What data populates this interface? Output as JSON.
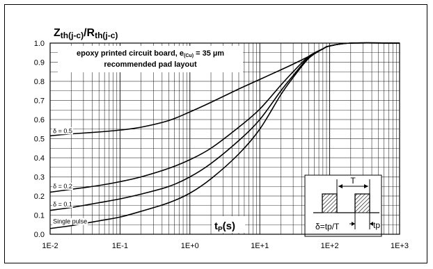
{
  "chart_data": {
    "type": "line",
    "title_main": "Z",
    "title_main_sub": "th(j-c)",
    "title_sep": "/R",
    "title_den_sub": "th(j-c)",
    "annotation_line1_pre": "epoxy printed circuit board, e",
    "annotation_line1_sub": "(Cu)",
    "annotation_line1_post": " = 35 µm",
    "annotation_line2": "recommended pad layout",
    "xlabel_main": "t",
    "xlabel_sub": "P",
    "xlabel_unit": "(s)",
    "xscale": "log",
    "xlim": [
      0.01,
      1000
    ],
    "ylim": [
      0,
      1.0
    ],
    "x_ticks": [
      {
        "v": 0.01,
        "label": "1E-2"
      },
      {
        "v": 0.1,
        "label": "1E-1"
      },
      {
        "v": 1,
        "label": "1E+0"
      },
      {
        "v": 10,
        "label": "1E+1"
      },
      {
        "v": 100,
        "label": "1E+2"
      },
      {
        "v": 1000,
        "label": "1E+3"
      }
    ],
    "y_ticks": [
      {
        "v": 0.0,
        "label": "0.0"
      },
      {
        "v": 0.1,
        "label": "0.1"
      },
      {
        "v": 0.2,
        "label": "0.2"
      },
      {
        "v": 0.3,
        "label": "0.3"
      },
      {
        "v": 0.4,
        "label": "0.4"
      },
      {
        "v": 0.5,
        "label": "0.5"
      },
      {
        "v": 0.6,
        "label": "0.6"
      },
      {
        "v": 0.7,
        "label": "0.7"
      },
      {
        "v": 0.8,
        "label": "0.8"
      },
      {
        "v": 0.9,
        "label": "0.9"
      },
      {
        "v": 1.0,
        "label": "1.0"
      }
    ],
    "grid": true,
    "series": [
      {
        "name": "δ = 0.5",
        "x": [
          0.01,
          0.02,
          0.05,
          0.1,
          0.2,
          0.5,
          1,
          2,
          5,
          10,
          20,
          30,
          50,
          80,
          100,
          200,
          1000
        ],
        "y": [
          0.515,
          0.525,
          0.535,
          0.545,
          0.56,
          0.595,
          0.64,
          0.69,
          0.76,
          0.81,
          0.86,
          0.89,
          0.93,
          0.97,
          0.985,
          1.0,
          1.0
        ]
      },
      {
        "name": "δ = 0.2",
        "x": [
          0.01,
          0.02,
          0.05,
          0.1,
          0.2,
          0.5,
          1,
          2,
          5,
          10,
          20,
          30,
          50,
          80,
          100,
          200,
          1000
        ],
        "y": [
          0.22,
          0.235,
          0.255,
          0.275,
          0.3,
          0.345,
          0.39,
          0.45,
          0.56,
          0.655,
          0.78,
          0.85,
          0.93,
          0.97,
          0.985,
          1.0,
          1.0
        ]
      },
      {
        "name": "δ = 0.1",
        "x": [
          0.01,
          0.02,
          0.05,
          0.1,
          0.2,
          0.5,
          1,
          2,
          5,
          10,
          20,
          30,
          50,
          80,
          100,
          200,
          1000
        ],
        "y": [
          0.125,
          0.14,
          0.165,
          0.185,
          0.21,
          0.25,
          0.3,
          0.37,
          0.49,
          0.6,
          0.75,
          0.83,
          0.925,
          0.97,
          0.985,
          1.0,
          1.0
        ]
      },
      {
        "name": "Single pulse",
        "x": [
          0.01,
          0.02,
          0.05,
          0.1,
          0.2,
          0.5,
          1,
          2,
          5,
          10,
          20,
          30,
          50,
          80,
          100,
          200,
          1000
        ],
        "y": [
          0.03,
          0.045,
          0.07,
          0.09,
          0.12,
          0.165,
          0.215,
          0.29,
          0.42,
          0.55,
          0.73,
          0.82,
          0.92,
          0.97,
          0.985,
          1.0,
          1.0
        ]
      }
    ],
    "series_labels": [
      {
        "text": "δ = 0.5",
        "x": 0.0105,
        "y": 0.53
      },
      {
        "text": "δ = 0.2",
        "x": 0.0105,
        "y": 0.24
      },
      {
        "text": "δ = 0.1",
        "x": 0.0105,
        "y": 0.146
      },
      {
        "text": "Single pulse",
        "x": 0.0105,
        "y": 0.056
      }
    ],
    "inset": {
      "period_label": "T",
      "pulse_label": "tp",
      "duty_formula": "δ=tp/T"
    },
    "colors": {
      "axes": "#000000",
      "grid": "#000000",
      "curve": "#000000",
      "background": "#ffffff"
    }
  }
}
